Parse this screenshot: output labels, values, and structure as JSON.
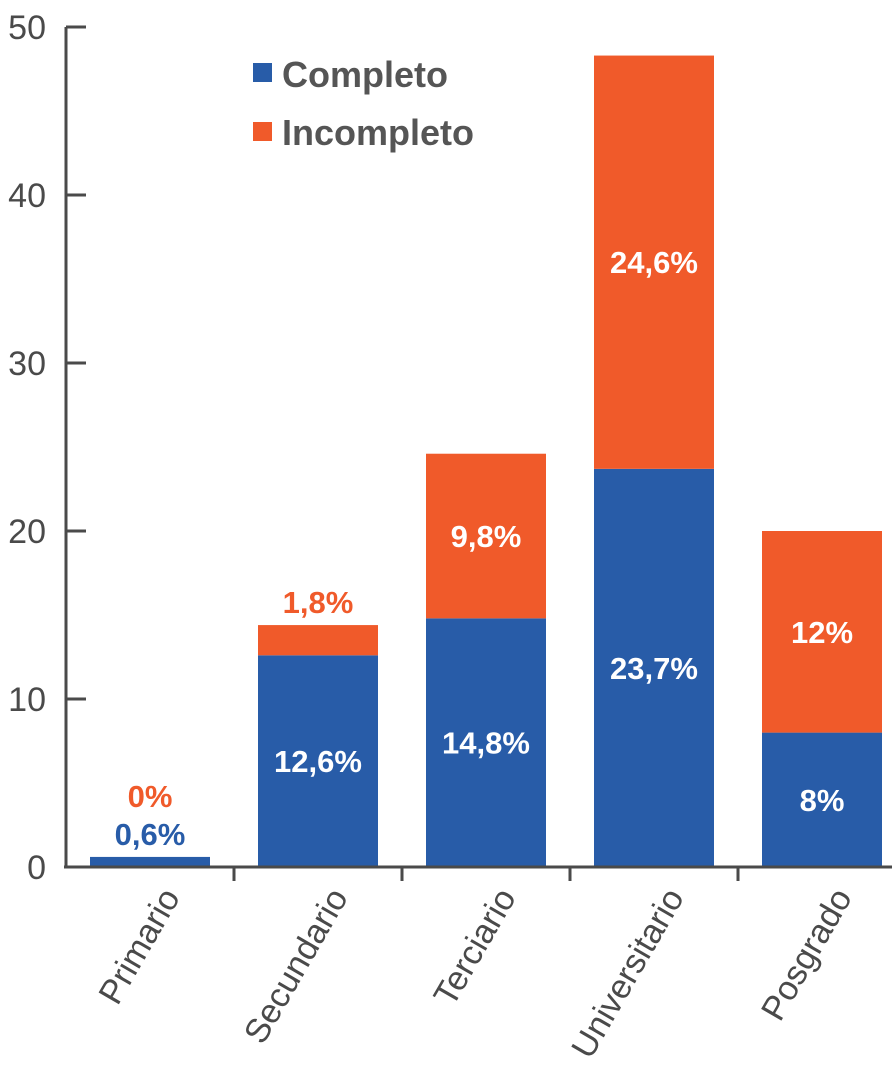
{
  "chart_data": {
    "type": "bar",
    "stacked": true,
    "categories": [
      "Primario",
      "Secundario",
      "Terciario",
      "Universitario",
      "Posgrado"
    ],
    "series": [
      {
        "name": "Completo",
        "color": "#285CA8",
        "values": [
          0.6,
          12.6,
          14.8,
          23.7,
          8
        ],
        "labels": [
          "0,6%",
          "12,6%",
          "14,8%",
          "23,7%",
          "8%"
        ]
      },
      {
        "name": "Incompleto",
        "color": "#F05A2A",
        "values": [
          0,
          1.8,
          9.8,
          24.6,
          12
        ],
        "labels": [
          "0%",
          "1,8%",
          "9,8%",
          "24,6%",
          "12%"
        ]
      }
    ],
    "yticks": [
      "0",
      "10",
      "20",
      "30",
      "40",
      "50"
    ],
    "ylim": [
      0,
      50
    ],
    "grid": false,
    "legend_position": "top-left"
  }
}
